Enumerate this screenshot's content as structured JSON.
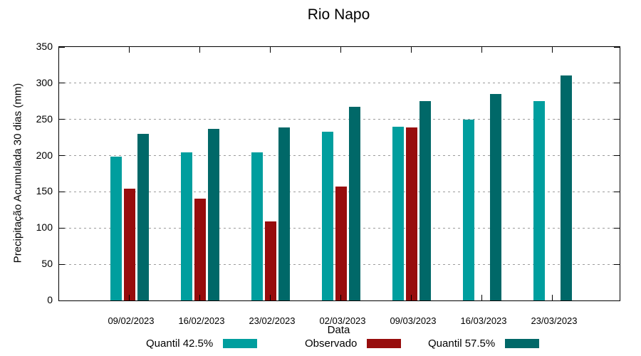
{
  "chart_data": {
    "type": "bar",
    "title": "Rio Napo",
    "xlabel": "Data",
    "ylabel": "Precipitação Acumulada 30 dias (mm)",
    "ylim": [
      0,
      350
    ],
    "ytick_step": 50,
    "yticks": [
      0,
      50,
      100,
      150,
      200,
      250,
      300,
      350
    ],
    "grid": "horizontal-dotted",
    "legend_position": "bottom",
    "background_color": "#ffffff",
    "axis_color": "#000000",
    "gridline_color": "#9c9c9c",
    "categories": [
      "09/02/2023",
      "16/02/2023",
      "23/02/2023",
      "02/03/2023",
      "09/03/2023",
      "16/03/2023",
      "23/03/2023"
    ],
    "series": [
      {
        "name": "Quantil 42.5%",
        "color": "#009E9E",
        "values": [
          199,
          205,
          205,
          233,
          240,
          250,
          275
        ]
      },
      {
        "name": "Observado",
        "color": "#970D0D",
        "values": [
          154,
          141,
          109,
          157,
          239,
          null,
          null
        ]
      },
      {
        "name": "Quantil 57.5%",
        "color": "#006868",
        "values": [
          230,
          237,
          239,
          267,
          275,
          285,
          311
        ]
      }
    ]
  }
}
